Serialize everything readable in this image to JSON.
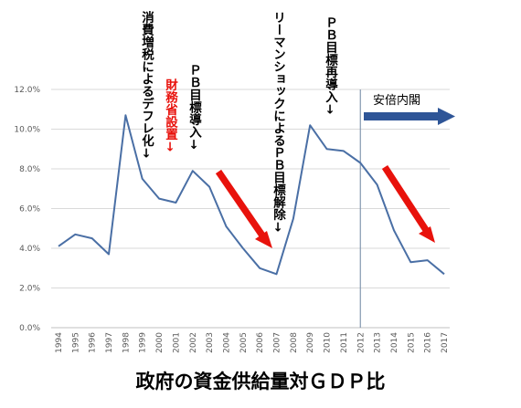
{
  "chart_data": {
    "type": "line",
    "title": "政府の資金供給量対ＧＤＰ比",
    "x": [
      "1994",
      "1995",
      "1996",
      "1997",
      "1998",
      "1999",
      "2000",
      "2001",
      "2002",
      "2003",
      "2004",
      "2005",
      "2006",
      "2007",
      "2008",
      "2009",
      "2010",
      "2011",
      "2012",
      "2013",
      "2014",
      "2015",
      "2016",
      "2017"
    ],
    "series": [
      {
        "values": [
          4.1,
          4.7,
          4.5,
          3.7,
          10.7,
          7.5,
          6.5,
          6.3,
          7.9,
          7.1,
          5.1,
          4.0,
          3.0,
          2.7,
          5.5,
          10.2,
          9.0,
          8.9,
          8.3,
          7.2,
          4.9,
          3.3,
          3.4,
          2.7
        ],
        "color": "#4a6fa5"
      }
    ],
    "ylim": [
      0,
      12
    ],
    "yticks": [
      "0.0%",
      "2.0%",
      "4.0%",
      "6.0%",
      "8.0%",
      "10.0%",
      "12.0%"
    ],
    "grid": true,
    "colors": {
      "line": "#4a6fa5",
      "grid": "#d9d9d9",
      "arrow_red": "#e8120c",
      "arrow_blue": "#2e5597",
      "divider": "#8497b0"
    },
    "annotations": [
      {
        "x": "1998",
        "text": "消費増税によるデフレ化↓",
        "color": "#000000"
      },
      {
        "x": "2001",
        "text": "財務省設置↓",
        "color": "#e8120c"
      },
      {
        "x": "2002",
        "text": "ＰＢ目標導入↓",
        "color": "#000000"
      },
      {
        "x": "2008",
        "text": "リーマンショックによるＰＢ目標解除↓",
        "color": "#000000"
      },
      {
        "x": "2011",
        "text": "ＰＢ目標再導入↓",
        "color": "#000000"
      },
      {
        "x": "2012",
        "text": "安倍内閣",
        "color": "#000000"
      }
    ]
  }
}
